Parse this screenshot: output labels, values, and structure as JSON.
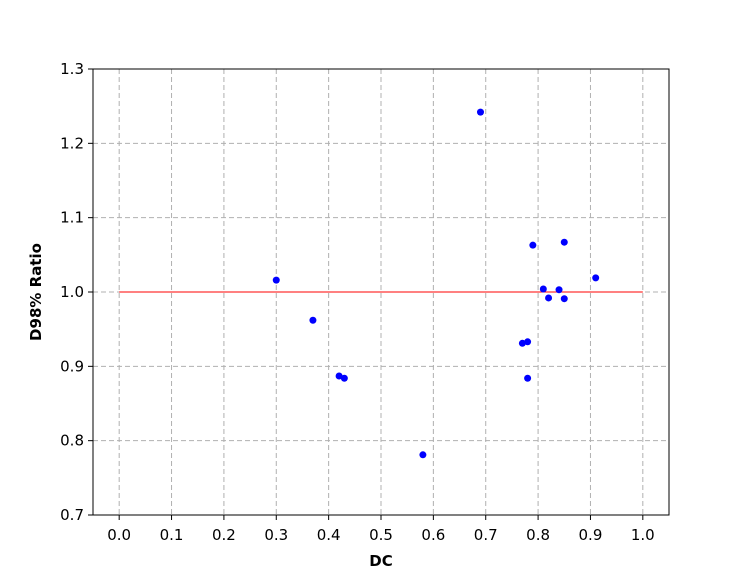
{
  "chart_data": {
    "type": "scatter",
    "x_label": "DC",
    "y_label": "D98% Ratio",
    "series": [
      {
        "color": "#0000ff",
        "x": [
          0.3,
          0.37,
          0.42,
          0.43,
          0.58,
          0.69,
          0.77,
          0.78,
          0.78,
          0.79,
          0.81,
          0.82,
          0.84,
          0.85,
          0.85,
          0.91
        ],
        "values": [
          1.016,
          0.962,
          0.887,
          0.884,
          0.781,
          1.242,
          0.931,
          0.933,
          0.884,
          1.063,
          1.004,
          0.992,
          1.003,
          1.067,
          0.991,
          1.019
        ]
      }
    ],
    "reference_line": {
      "y": 1.0,
      "xmin": 0.0,
      "xmax": 1.0,
      "color": "#ff0000"
    },
    "xlim": [
      -0.05,
      1.05
    ],
    "xticks": [
      {
        "value": 0,
        "label": "0.0"
      },
      0.1,
      0.2,
      0.3,
      0.4,
      0.5,
      0.6,
      0.7,
      0.8,
      0.9,
      {
        "value": 1,
        "label": "1.0"
      }
    ],
    "ylim": [
      0.7,
      1.3
    ],
    "yticks": [
      0.7,
      0.8,
      0.9,
      {
        "value": 1,
        "label": "1.0"
      },
      1.1,
      1.2,
      1.3
    ],
    "grid": true
  }
}
